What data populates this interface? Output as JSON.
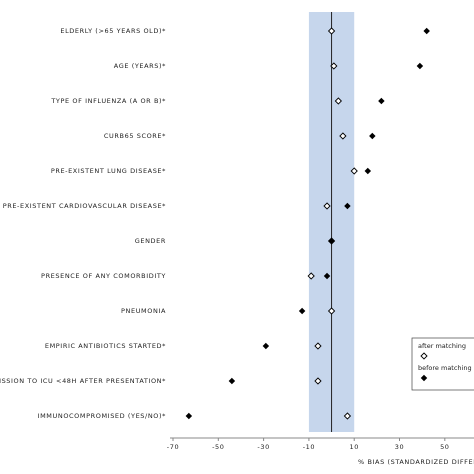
{
  "chart_data": {
    "type": "dot",
    "x_label": "% BIAS (STANDARDIZED DIFFERENCE",
    "categories": [
      "ELDERLY (>65 YEARS OLD)*",
      "AGE (YEARS)*",
      "TYPE OF INFLUENZA (A OR B)*",
      "CURB65 SCORE*",
      "PRE-EXISTENT LUNG DISEASE*",
      "PRE-EXISTENT CARDIOVASCULAR DISEASE*",
      "GENDER",
      "PRESENCE OF ANY COMORBIDITY",
      "PNEUMONIA",
      "EMPIRIC ANTIBIOTICS STARTED*",
      "ISSION TO ICU <48H AFTER PRESENTATION*",
      "IMMUNOCOMPROMISED (YES/NO)*"
    ],
    "series": [
      {
        "name": "after matching",
        "color": "#ffffff",
        "values": [
          0,
          1,
          3,
          5,
          10,
          -2,
          0,
          -9,
          0,
          -6,
          -6,
          7
        ]
      },
      {
        "name": "before matching",
        "color": "#000000",
        "values": [
          42,
          39,
          22,
          18,
          16,
          7,
          0,
          -2,
          -13,
          -29,
          -44,
          -63
        ]
      }
    ],
    "xlim": [
      -70,
      62
    ],
    "xticks": [
      -70,
      -50,
      -30,
      -10,
      10,
      30,
      50
    ],
    "band": [
      -10,
      10
    ],
    "refline": 0,
    "legend": "lower-right"
  }
}
